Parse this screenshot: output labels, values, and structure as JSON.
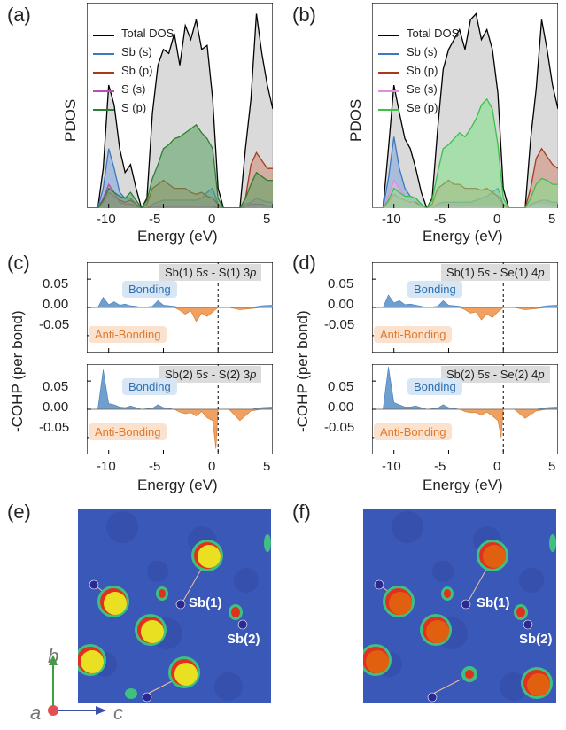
{
  "labels": {
    "a": "(a)",
    "b": "(b)",
    "c": "(c)",
    "d": "(d)",
    "e": "(e)",
    "f": "(f)"
  },
  "axis": {
    "pdos_ylabel": "PDOS",
    "cohp_ylabel": "-COHP (per bond)",
    "energy_xlabel": "Energy (eV)",
    "x_ticks": [
      "-10",
      "-5",
      "0",
      "5"
    ],
    "cohp_y_ticks": [
      "0.05",
      "0.00",
      "-0.05"
    ]
  },
  "legend_a": [
    "Total DOS",
    "Sb (s)",
    "Sb (p)",
    "S (s)",
    "S (p)"
  ],
  "legend_b": [
    "Total DOS",
    "Sb (s)",
    "Sb (p)",
    "Se (s)",
    "Se (p)"
  ],
  "cohp_headers": {
    "c_top": {
      "pre": "Sb(1) 5",
      "o1": "s",
      "mid": " - S(1) 3",
      "o2": "p"
    },
    "c_bot": {
      "pre": "Sb(2) 5",
      "o1": "s",
      "mid": " - S(2) 3",
      "o2": "p"
    },
    "d_top": {
      "pre": "Sb(1) 5",
      "o1": "s",
      "mid": " - Se(1) 4",
      "o2": "p"
    },
    "d_bot": {
      "pre": "Sb(2) 5",
      "o1": "s",
      "mid": " - Se(2) 4",
      "o2": "p"
    }
  },
  "bonding_label": "Bonding",
  "antibonding_label": "Anti-Bonding",
  "atom_labels": {
    "sb1": "Sb(1)",
    "sb2": "Sb(2)"
  },
  "axes_triad": {
    "a": "a",
    "b": "b",
    "c": "c"
  },
  "colors": {
    "total": "#000000",
    "sb_s": "#3b78c2",
    "sb_p": "#a63a1c",
    "x_s": "#b54fb0",
    "s_p": "#2e7d32",
    "se_p": "#3cc04a",
    "bonding": "#6f9fcf",
    "antibonding": "#f0a060",
    "map_bg": "#3a58b8",
    "s_atom": "#e8e020",
    "se_atom": "#e06010"
  },
  "chart_data": [
    {
      "type": "area",
      "panel": "a",
      "xlim": [
        -12,
        5
      ],
      "x": [
        -12,
        -11,
        -10.5,
        -10,
        -9.5,
        -9,
        -8.5,
        -8,
        -7.5,
        -7,
        -6.5,
        -6,
        -5.5,
        -5,
        -4.5,
        -4,
        -3.5,
        -3,
        -2.5,
        -2,
        -1.5,
        -1,
        -0.5,
        0,
        0.5,
        1,
        1.5,
        2,
        2.5,
        3,
        3.5,
        4,
        4.5,
        5
      ],
      "series": [
        {
          "name": "Total DOS",
          "values": [
            0,
            0,
            0.2,
            0.62,
            0.52,
            0.3,
            0.18,
            0.22,
            0.1,
            0,
            0.05,
            0.48,
            0.72,
            0.8,
            0.78,
            0.88,
            0.72,
            0.92,
            0.85,
            0.95,
            0.8,
            0.82,
            0.55,
            0.1,
            0,
            0,
            0,
            0,
            0.3,
            0.55,
            0.98,
            0.78,
            0.62,
            0.5
          ]
        },
        {
          "name": "Sb (s)",
          "values": [
            0,
            0,
            0.1,
            0.3,
            0.2,
            0.08,
            0.05,
            0.05,
            0.02,
            0,
            0,
            0.02,
            0.03,
            0.04,
            0.04,
            0.04,
            0.04,
            0.04,
            0.04,
            0.04,
            0.05,
            0.08,
            0.1,
            0.02,
            0,
            0,
            0,
            0,
            0.02,
            0.03,
            0.05,
            0.04,
            0.03,
            0.03
          ]
        },
        {
          "name": "Sb (p)",
          "values": [
            0,
            0,
            0.03,
            0.08,
            0.06,
            0.04,
            0.03,
            0.04,
            0.02,
            0,
            0.02,
            0.1,
            0.12,
            0.14,
            0.12,
            0.1,
            0.1,
            0.1,
            0.08,
            0.07,
            0.08,
            0.06,
            0.05,
            0.02,
            0,
            0,
            0,
            0,
            0.05,
            0.22,
            0.28,
            0.24,
            0.2,
            0.2
          ]
        },
        {
          "name": "S (s)",
          "values": [
            0,
            0,
            0.05,
            0.12,
            0.08,
            0.03,
            0.02,
            0.02,
            0.01,
            0,
            0,
            0.01,
            0.01,
            0.01,
            0.01,
            0.01,
            0.01,
            0.01,
            0.01,
            0.01,
            0.01,
            0.01,
            0.01,
            0,
            0,
            0,
            0,
            0,
            0.01,
            0.02,
            0.02,
            0.02,
            0.01,
            0.01
          ]
        },
        {
          "name": "S (p)",
          "values": [
            0,
            0,
            0.04,
            0.1,
            0.08,
            0.06,
            0.05,
            0.08,
            0.04,
            0,
            0.04,
            0.15,
            0.22,
            0.3,
            0.32,
            0.35,
            0.36,
            0.38,
            0.4,
            0.42,
            0.38,
            0.35,
            0.3,
            0.05,
            0,
            0,
            0,
            0,
            0.05,
            0.12,
            0.18,
            0.16,
            0.14,
            0.14
          ]
        }
      ]
    },
    {
      "type": "area",
      "panel": "b",
      "xlim": [
        -12,
        5
      ],
      "x": [
        -12,
        -11,
        -10.5,
        -10,
        -9.5,
        -9,
        -8.5,
        -8,
        -7.5,
        -7,
        -6.5,
        -6,
        -5.5,
        -5,
        -4.5,
        -4,
        -3.5,
        -3,
        -2.5,
        -2,
        -1.5,
        -1,
        -0.5,
        0,
        0.5,
        1,
        1.5,
        2,
        2.5,
        3,
        3.5,
        4,
        4.5,
        5
      ],
      "series": [
        {
          "name": "Total DOS",
          "values": [
            0,
            0,
            0.3,
            0.62,
            0.48,
            0.35,
            0.3,
            0.2,
            0.08,
            0,
            0.05,
            0.4,
            0.7,
            0.8,
            0.85,
            0.9,
            0.8,
            0.95,
            0.98,
            0.85,
            0.9,
            0.8,
            0.58,
            0.1,
            0,
            0,
            0,
            0,
            0.35,
            0.6,
            0.95,
            0.8,
            0.62,
            0.5
          ]
        },
        {
          "name": "Sb (s)",
          "values": [
            0,
            0,
            0.15,
            0.36,
            0.2,
            0.1,
            0.06,
            0.05,
            0.02,
            0,
            0,
            0.02,
            0.03,
            0.03,
            0.03,
            0.03,
            0.03,
            0.03,
            0.04,
            0.05,
            0.06,
            0.08,
            0.1,
            0.02,
            0,
            0,
            0,
            0,
            0.02,
            0.03,
            0.04,
            0.04,
            0.03,
            0.03
          ]
        },
        {
          "name": "Sb (p)",
          "values": [
            0,
            0,
            0.03,
            0.07,
            0.05,
            0.04,
            0.03,
            0.03,
            0.01,
            0,
            0.02,
            0.1,
            0.12,
            0.14,
            0.12,
            0.12,
            0.1,
            0.1,
            0.1,
            0.09,
            0.1,
            0.08,
            0.06,
            0.02,
            0,
            0,
            0,
            0,
            0.1,
            0.25,
            0.3,
            0.26,
            0.22,
            0.2
          ]
        },
        {
          "name": "Se (s)",
          "values": [
            0,
            0,
            0.06,
            0.14,
            0.1,
            0.06,
            0.04,
            0.02,
            0.01,
            0,
            0,
            0.01,
            0.01,
            0.01,
            0.01,
            0.01,
            0.01,
            0.01,
            0.01,
            0.01,
            0.01,
            0.01,
            0.01,
            0,
            0,
            0,
            0,
            0,
            0.01,
            0.02,
            0.02,
            0.02,
            0.01,
            0.01
          ]
        },
        {
          "name": "Se (p)",
          "values": [
            0,
            0,
            0.04,
            0.1,
            0.08,
            0.06,
            0.06,
            0.05,
            0.02,
            0,
            0.04,
            0.18,
            0.3,
            0.32,
            0.35,
            0.38,
            0.36,
            0.4,
            0.45,
            0.52,
            0.55,
            0.5,
            0.32,
            0.05,
            0,
            0,
            0,
            0,
            0.05,
            0.12,
            0.15,
            0.14,
            0.12,
            0.12
          ]
        }
      ]
    },
    {
      "type": "area",
      "panel": "c-top",
      "title": "Sb(1) 5s - S(1) 3p",
      "xlim": [
        -12,
        5
      ],
      "ylim": [
        -0.08,
        0.08
      ],
      "x": [
        -12,
        -11,
        -10.5,
        -10,
        -9.5,
        -9,
        -8.5,
        -8,
        -7.5,
        -7,
        -6,
        -5.5,
        -5,
        -4,
        -3.5,
        -3,
        -2.5,
        -2,
        -1.5,
        -1,
        -0.5,
        0,
        0.5,
        1,
        2,
        3,
        4,
        5
      ],
      "values": [
        0,
        0,
        0.018,
        0.005,
        0.01,
        0.004,
        0.006,
        0.003,
        0.002,
        0,
        0.002,
        0.012,
        0.004,
        0.002,
        -0.005,
        -0.012,
        -0.006,
        -0.025,
        -0.01,
        -0.016,
        -0.008,
        0,
        0,
        0,
        -0.004,
        -0.002,
        0.003,
        0.004
      ]
    },
    {
      "type": "area",
      "panel": "c-bottom",
      "title": "Sb(2) 5s - S(2) 3p",
      "xlim": [
        -12,
        5
      ],
      "ylim": [
        -0.08,
        0.08
      ],
      "x": [
        -12,
        -11,
        -10.5,
        -10,
        -9.5,
        -9,
        -8.5,
        -8,
        -7.5,
        -7,
        -6,
        -5.5,
        -5,
        -4,
        -3.5,
        -3,
        -2.5,
        -2,
        -1.5,
        -1,
        -0.5,
        -0.2,
        0,
        0.5,
        1,
        2,
        3,
        4,
        5
      ],
      "values": [
        0,
        0,
        0.07,
        0.01,
        0.008,
        0.004,
        0.003,
        0.006,
        0.003,
        0,
        0.002,
        0.008,
        0.003,
        0,
        -0.005,
        -0.008,
        -0.006,
        -0.012,
        -0.004,
        -0.015,
        -0.02,
        -0.07,
        0,
        0,
        0,
        -0.02,
        -0.003,
        0.003,
        0.004
      ]
    },
    {
      "type": "area",
      "panel": "d-top",
      "title": "Sb(1) 5s - Se(1) 4p",
      "xlim": [
        -12,
        5
      ],
      "ylim": [
        -0.08,
        0.08
      ],
      "x": [
        -12,
        -11,
        -10.5,
        -10,
        -9.5,
        -9,
        -8.5,
        -8,
        -7.5,
        -7,
        -6,
        -5.5,
        -5,
        -4,
        -3.5,
        -3,
        -2.5,
        -2,
        -1.5,
        -1,
        -0.5,
        0,
        0.5,
        1,
        2,
        3,
        4,
        5
      ],
      "values": [
        0,
        0,
        0.022,
        0.008,
        0.012,
        0.005,
        0.006,
        0.004,
        0.002,
        0,
        0.002,
        0.012,
        0.004,
        0.002,
        -0.004,
        -0.01,
        -0.008,
        -0.022,
        -0.012,
        -0.018,
        -0.008,
        0,
        0,
        0,
        -0.004,
        -0.002,
        0.003,
        0.004
      ]
    },
    {
      "type": "area",
      "panel": "d-bottom",
      "title": "Sb(2) 5s - Se(2) 4p",
      "xlim": [
        -12,
        5
      ],
      "ylim": [
        -0.08,
        0.08
      ],
      "x": [
        -12,
        -11,
        -10.5,
        -10,
        -9.5,
        -9,
        -8.5,
        -8,
        -7.5,
        -7,
        -6,
        -5.5,
        -5,
        -4,
        -3.5,
        -3,
        -2.5,
        -2,
        -1.5,
        -1,
        -0.5,
        -0.2,
        0,
        0.5,
        1,
        2,
        3,
        4,
        5
      ],
      "values": [
        0,
        0,
        0.075,
        0.012,
        0.008,
        0.004,
        0.004,
        0.006,
        0.003,
        0,
        0.002,
        0.008,
        0.003,
        0,
        -0.004,
        -0.006,
        -0.006,
        -0.01,
        -0.005,
        -0.012,
        -0.02,
        -0.05,
        0,
        0,
        0,
        -0.016,
        -0.003,
        0.003,
        0.004
      ]
    }
  ]
}
